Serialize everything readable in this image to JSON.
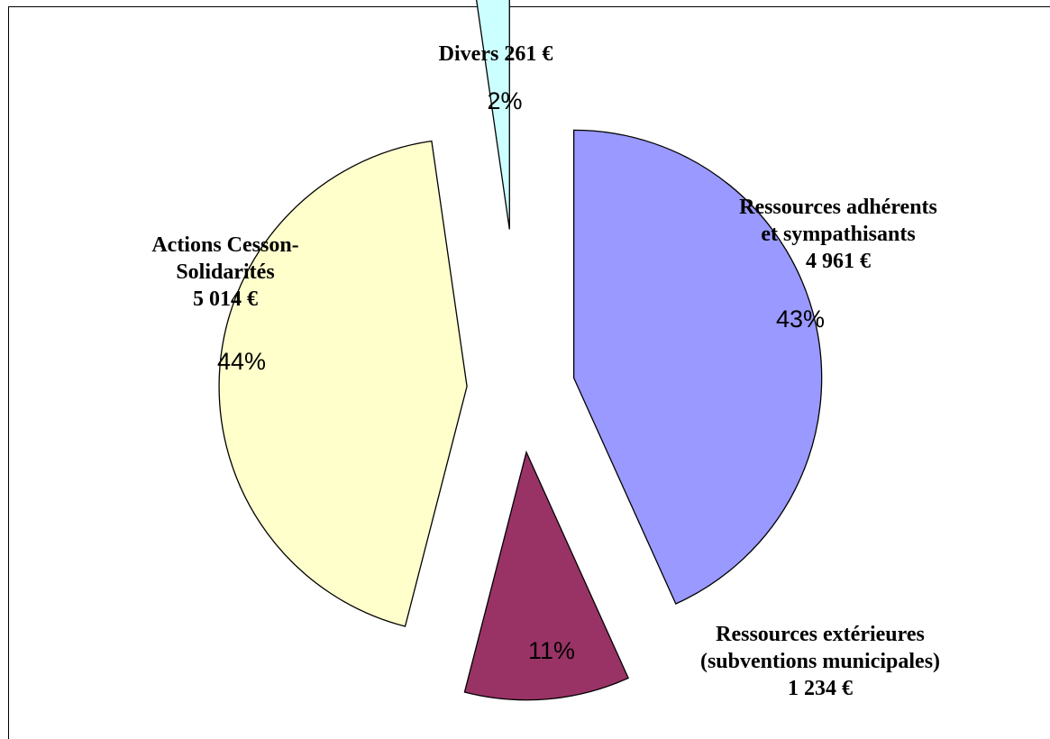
{
  "chart_data": {
    "type": "pie",
    "exploded": true,
    "legend": "none",
    "slices": [
      {
        "label_lines": [
          "Ressources adhérents",
          "et sympathisants",
          "4 961 €"
        ],
        "value": 4961,
        "percent_label": "43%",
        "color": "#9999ff"
      },
      {
        "label_lines": [
          "Ressources extérieures",
          "(subventions municipales)",
          "1 234 €"
        ],
        "value": 1234,
        "percent_label": "11%",
        "color": "#993366"
      },
      {
        "label_lines": [
          "Actions Cesson-",
          "Solidarités",
          "5 014 €"
        ],
        "value": 5014,
        "percent_label": "44%",
        "color": "#ffffcc"
      },
      {
        "label_lines": [
          "Divers 261 €"
        ],
        "value": 261,
        "percent_label": "2%",
        "color": "#ccffff"
      }
    ]
  }
}
